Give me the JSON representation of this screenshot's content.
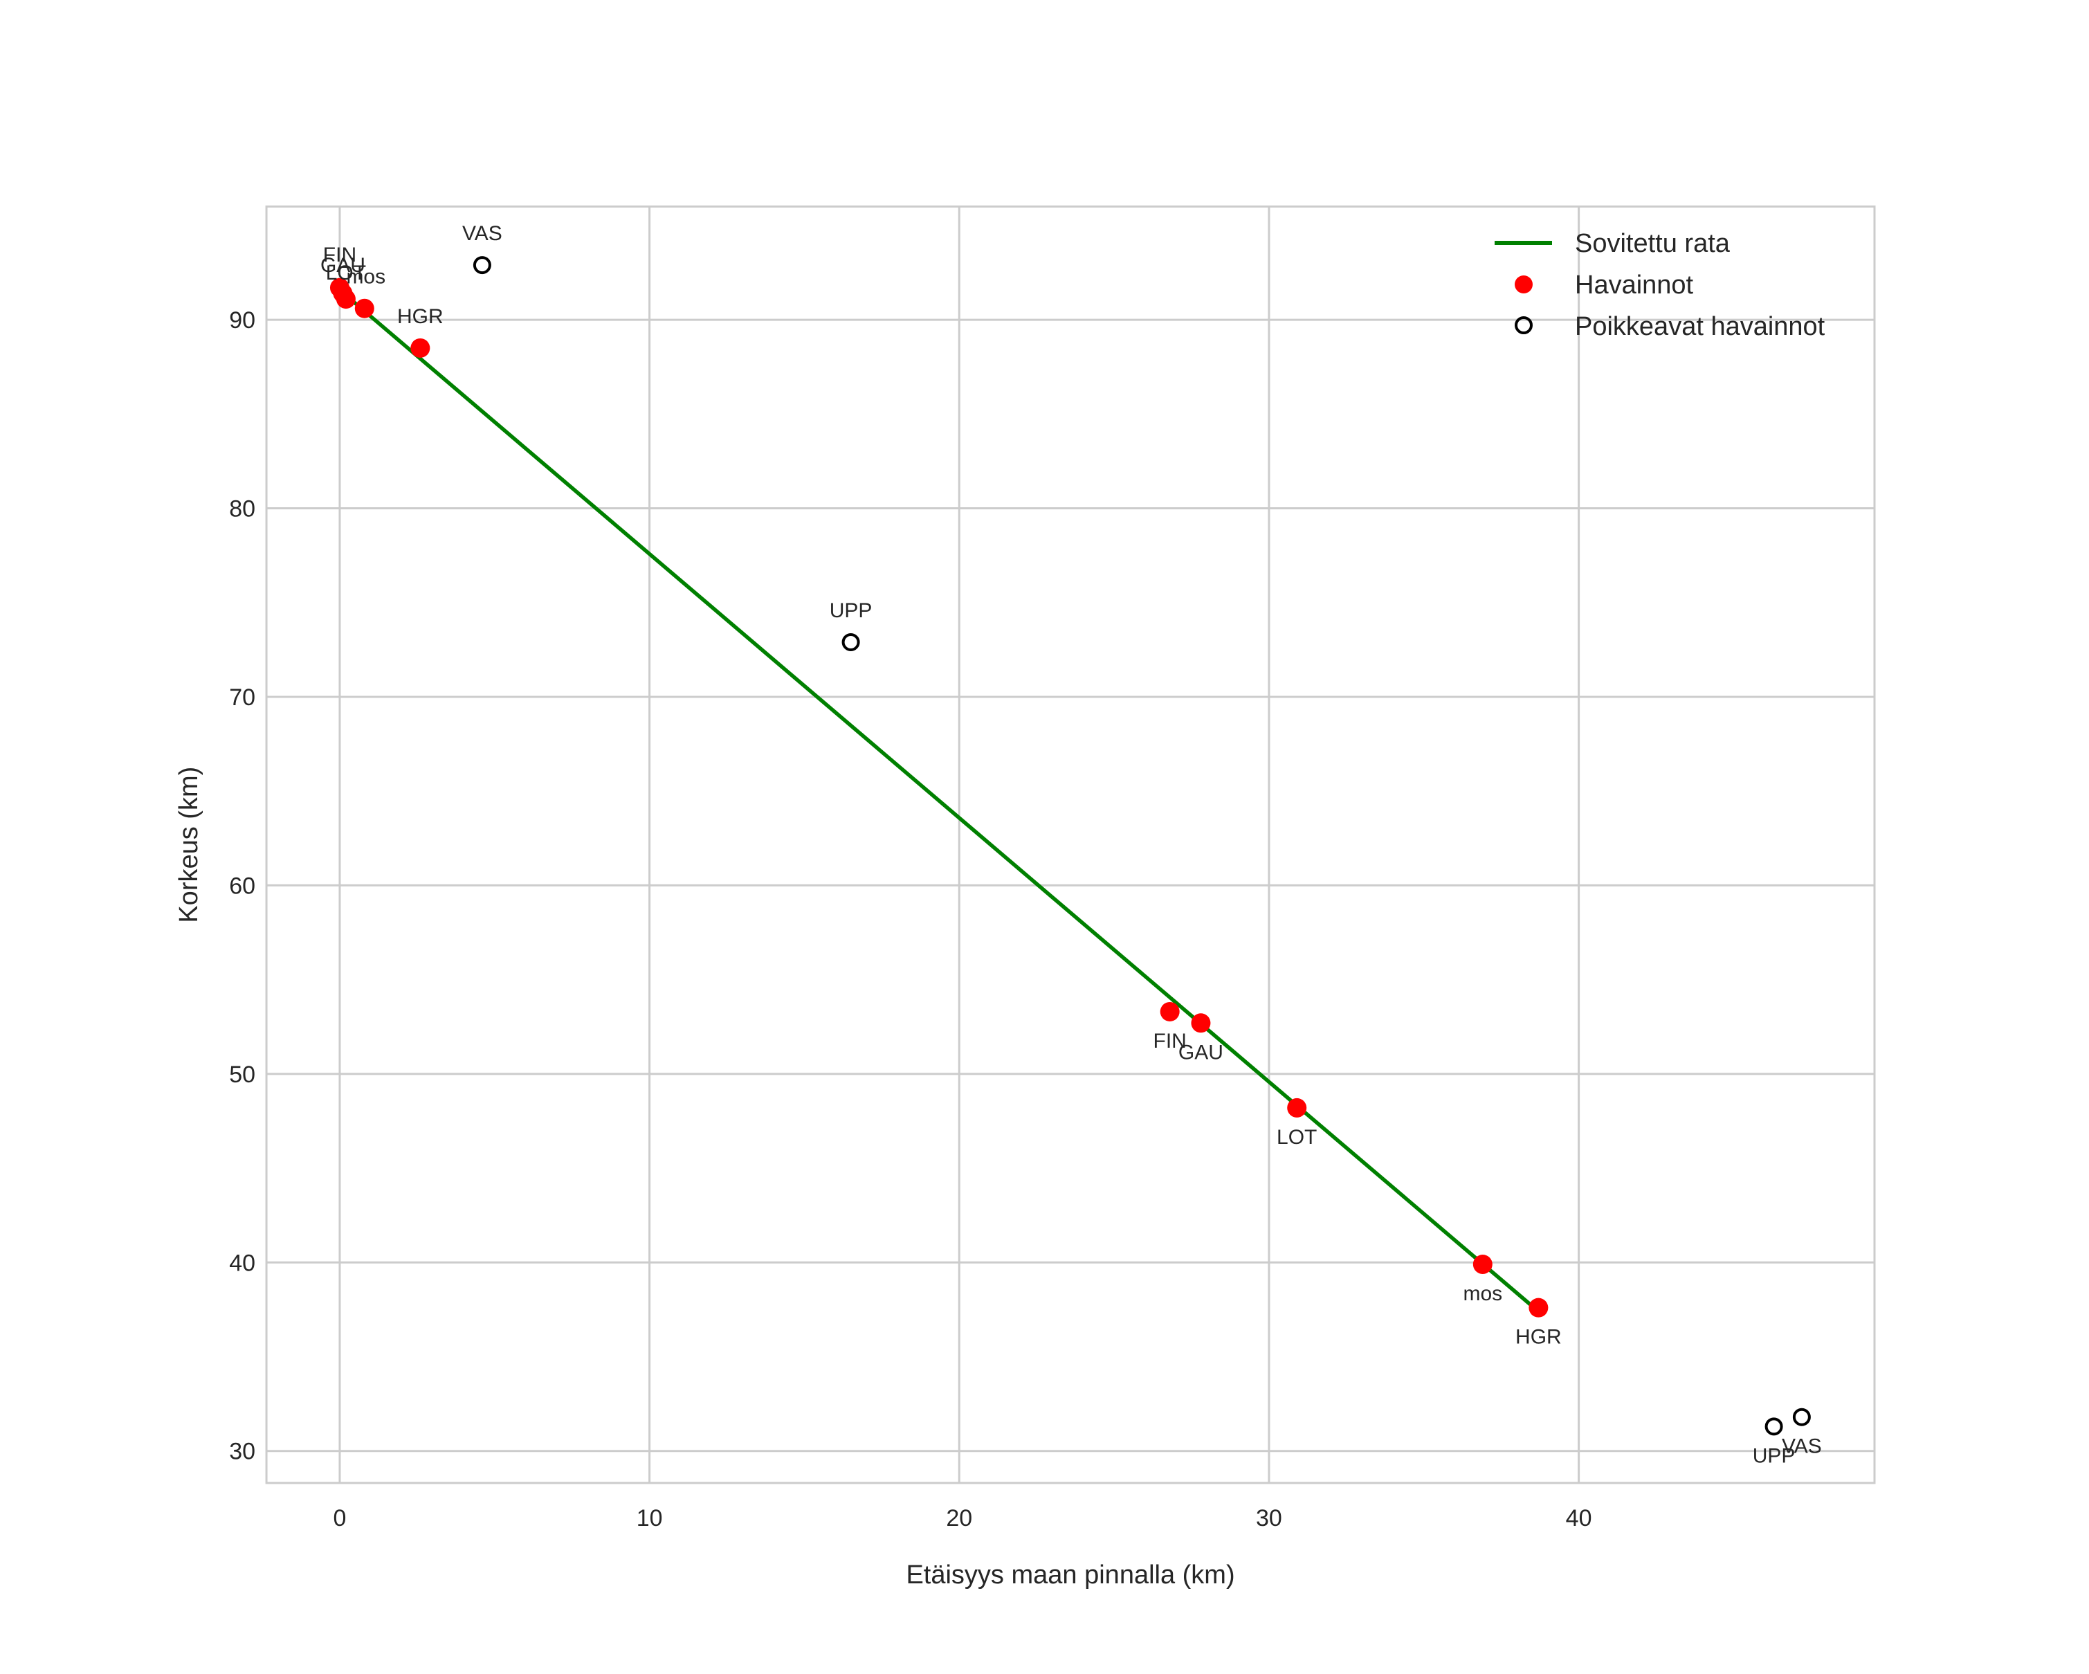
{
  "chart_data": {
    "type": "scatter",
    "title": "",
    "xlabel": "Etäisyys maan pinnalla (km)",
    "ylabel": "Korkeus (km)",
    "xlim": [
      -2.4,
      49.5
    ],
    "ylim": [
      28.3,
      96.0
    ],
    "xticks": [
      0,
      10,
      20,
      30,
      40
    ],
    "yticks": [
      30,
      40,
      50,
      60,
      70,
      80,
      90
    ],
    "grid": true,
    "legend_position": "upper right",
    "series": [
      {
        "name": "Sovitettu rata",
        "kind": "line",
        "color": "#008000",
        "points": [
          [
            0.2,
            91.3
          ],
          [
            38.7,
            37.4
          ]
        ]
      },
      {
        "name": "Havainnot",
        "kind": "scatter",
        "color": "#ff0000",
        "marker": "filled-circle",
        "points": [
          {
            "label": "FIN",
            "x": 0.0,
            "y": 91.7
          },
          {
            "label": "GAU",
            "x": 0.1,
            "y": 91.4
          },
          {
            "label": "LOT",
            "x": 0.2,
            "y": 91.1
          },
          {
            "label": "mos",
            "x": 0.8,
            "y": 90.6
          },
          {
            "label": "HGR",
            "x": 2.6,
            "y": 88.5
          },
          {
            "label": "FIN",
            "x": 26.8,
            "y": 53.3
          },
          {
            "label": "GAU",
            "x": 27.8,
            "y": 52.7
          },
          {
            "label": "LOT",
            "x": 30.9,
            "y": 48.2
          },
          {
            "label": "mos",
            "x": 36.9,
            "y": 39.9
          },
          {
            "label": "HGR",
            "x": 38.7,
            "y": 37.6
          }
        ]
      },
      {
        "name": "Poikkeavat havainnot",
        "kind": "scatter",
        "color": "#000000",
        "marker": "open-circle",
        "points": [
          {
            "label": "VAS",
            "x": 4.6,
            "y": 92.9
          },
          {
            "label": "UPP",
            "x": 16.5,
            "y": 72.9
          },
          {
            "label": "UPP",
            "x": 46.3,
            "y": 31.3
          },
          {
            "label": "VAS",
            "x": 47.2,
            "y": 31.8
          }
        ]
      }
    ]
  },
  "legend": {
    "items": [
      {
        "label": "Sovitettu rata"
      },
      {
        "label": "Havainnot"
      },
      {
        "label": "Poikkeavat havainnot"
      }
    ]
  }
}
